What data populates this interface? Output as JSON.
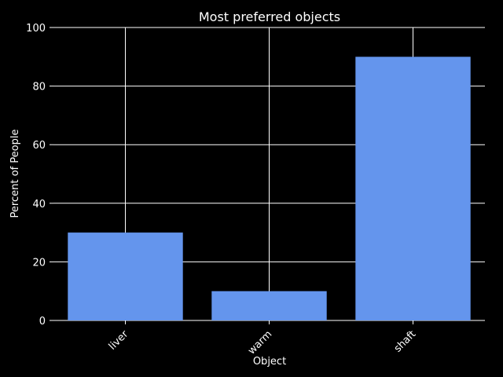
{
  "chart_data": {
    "type": "bar",
    "title": "Most preferred objects",
    "xlabel": "Object",
    "ylabel": "Percent of People",
    "categories": [
      "liver",
      "warm",
      "shaft"
    ],
    "values": [
      30,
      10,
      90
    ],
    "ylim": [
      0,
      100
    ],
    "yticks": [
      0,
      20,
      40,
      60,
      80,
      100
    ],
    "grid": true,
    "bar_color": "#6495ED",
    "background_color": "#000000",
    "text_color": "#ffffff",
    "grid_color": "#ffffff"
  }
}
